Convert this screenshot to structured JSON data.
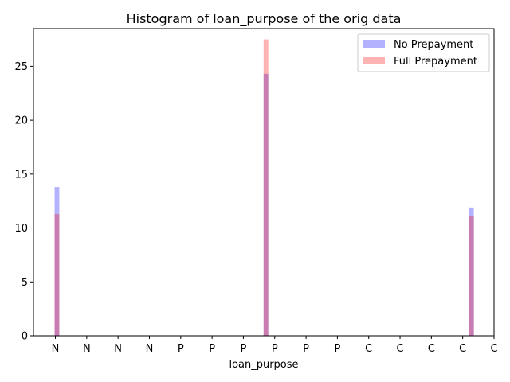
{
  "chart_data": {
    "type": "bar",
    "title": "Histogram of loan_purpose of the orig data",
    "xlabel": "loan_purpose",
    "ylabel": "",
    "ylim": [
      0,
      28.5
    ],
    "yticks": [
      0,
      5,
      10,
      15,
      20,
      25
    ],
    "xtick_labels": [
      "N",
      "N",
      "N",
      "N",
      "P",
      "P",
      "P",
      "P",
      "P",
      "P",
      "C",
      "C",
      "C",
      "C",
      "C"
    ],
    "xlim": [
      -0.7,
      14.0
    ],
    "legend_position": "top-right",
    "grid": false,
    "series": [
      {
        "name": "No Prepayment",
        "color": "#0000ff",
        "alpha": 0.3,
        "bars": [
          {
            "x": 0.05,
            "value": 13.8
          },
          {
            "x": 6.72,
            "value": 24.3
          },
          {
            "x": 13.28,
            "value": 11.9
          }
        ]
      },
      {
        "name": "Full Prepayment",
        "color": "#ff0000",
        "alpha": 0.3,
        "bars": [
          {
            "x": 0.05,
            "value": 11.3
          },
          {
            "x": 6.72,
            "value": 27.5
          },
          {
            "x": 13.28,
            "value": 11.1
          }
        ]
      }
    ]
  }
}
